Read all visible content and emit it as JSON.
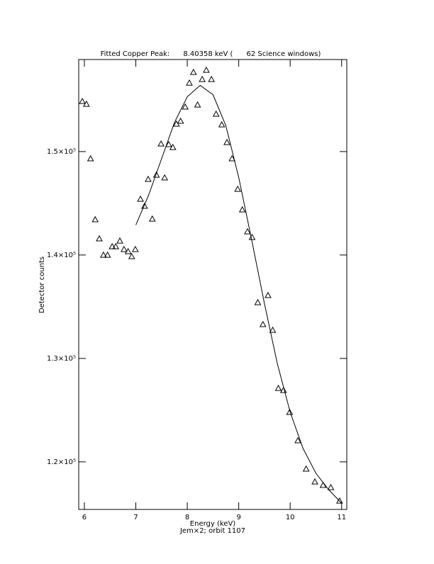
{
  "chart_data": {
    "type": "scatter",
    "title": "Fitted Copper Peak:      8.40358 keV (      62 Science windows)",
    "x_label": "Energy (keV)",
    "subtitle": "Jem×2; orbit 1107",
    "y_label": "Detector counts",
    "xlim": [
      5.89,
      11.1
    ],
    "xticks": [
      6,
      7,
      8,
      9,
      10,
      11
    ],
    "ylim": [
      115400,
      158900
    ],
    "yticks": [
      {
        "value": 120000,
        "label": "1.2×10⁵"
      },
      {
        "value": 130000,
        "label": "1.3×10⁵"
      },
      {
        "value": 140000,
        "label": "1.4×10⁵"
      },
      {
        "value": 150000,
        "label": "1.5×10⁵"
      }
    ],
    "grid": false,
    "series": [
      {
        "type": "scatter",
        "marker": "triangle",
        "color": "#000000",
        "x": [
          5.96,
          6.04,
          6.12,
          6.21,
          6.29,
          6.37,
          6.45,
          6.54,
          6.61,
          6.69,
          6.77,
          6.85,
          6.92,
          6.99,
          7.09,
          7.17,
          7.24,
          7.32,
          7.4,
          7.49,
          7.56,
          7.64,
          7.72,
          7.79,
          7.87,
          7.96,
          8.04,
          8.12,
          8.2,
          8.29,
          8.37,
          8.47,
          8.56,
          8.67,
          8.77,
          8.87,
          8.98,
          9.07,
          9.17,
          9.26,
          9.37,
          9.47,
          9.57,
          9.66,
          9.77,
          9.87,
          9.99,
          10.15,
          10.31,
          10.48,
          10.64,
          10.79,
          10.96
        ],
        "values": [
          154860,
          154590,
          149320,
          143430,
          141580,
          140000,
          140000,
          140820,
          140820,
          141370,
          140550,
          140340,
          139860,
          140550,
          145410,
          144730,
          147330,
          143490,
          147740,
          150750,
          147470,
          150690,
          150410,
          152670,
          152950,
          154320,
          156640,
          157670,
          154520,
          156990,
          157880,
          156990,
          153630,
          152600,
          150890,
          149320,
          146370,
          144380,
          142260,
          141710,
          135410,
          133290,
          136100,
          132740,
          127120,
          126920,
          124800,
          122060,
          119320,
          118080,
          117740,
          117530,
          116230
        ]
      },
      {
        "type": "line",
        "color": "#000000",
        "x": [
          7.0,
          7.25,
          7.5,
          7.75,
          8.0,
          8.25,
          8.5,
          8.75,
          9.0,
          9.25,
          9.5,
          9.75,
          10.0,
          10.25,
          10.5,
          10.75,
          11.0
        ],
        "values": [
          142900,
          145800,
          149300,
          152800,
          155300,
          156400,
          155500,
          152500,
          147500,
          141500,
          135300,
          129500,
          124800,
          121300,
          118900,
          117300,
          116000
        ]
      }
    ]
  }
}
